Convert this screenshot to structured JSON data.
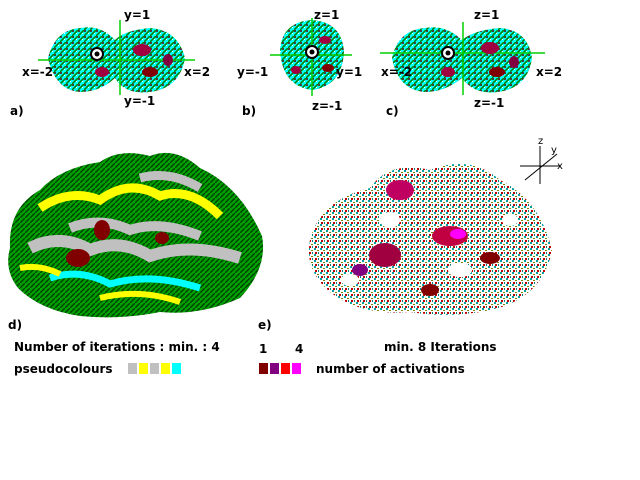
{
  "panels": {
    "a": {
      "letter": "a)",
      "axis_labels": {
        "top": "y=1",
        "bottom": "y=-1",
        "left": "x=-2",
        "right": "x=2"
      }
    },
    "b": {
      "letter": "b)",
      "axis_labels": {
        "top": "z=1",
        "bottom": "z=-1",
        "left": "y=-1",
        "right": "y=1"
      }
    },
    "c": {
      "letter": "c)",
      "axis_labels": {
        "top": "z=1",
        "bottom": "z=-1",
        "left": "x=-2",
        "right": "x=2"
      }
    },
    "d": {
      "letter": "d)"
    },
    "e": {
      "letter": "e)"
    }
  },
  "axes_gizmo": {
    "z": "z",
    "y": "y",
    "x": "x"
  },
  "legend": {
    "iterations_left": "Number of iterations : min. : 4",
    "iterations_right": "min. 8 Iterations",
    "pseudocolours_label": "pseudocolours",
    "pseudocolour_swatches": [
      "#c0c0c0",
      "#ffff00",
      "#c0c0c0",
      "#ffff00",
      "#00ffff"
    ],
    "activation_min": "1",
    "activation_max": "4",
    "activation_swatches": [
      "#800000",
      "#800080",
      "#ff0000",
      "#ff00ff"
    ],
    "activations_label": "number of activations"
  },
  "colors": {
    "green": "#00a000",
    "cyan": "#00ffff",
    "yellow": "#ffff00",
    "gray": "#c0c0c0",
    "maroon": "#800000",
    "purple": "#800080",
    "red": "#ff0000",
    "magenta": "#ff00ff"
  }
}
